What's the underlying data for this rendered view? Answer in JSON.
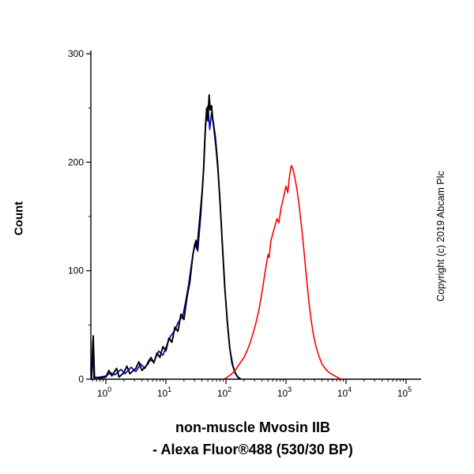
{
  "page": {
    "background": "#ffffff"
  },
  "y_axis_label": "Count",
  "copyright": "Copyright (c) 2019 Abcam Plc",
  "x_title_line1": "non-muscle Mvosin IIB",
  "x_title_line2": "- Alexa Fluor®488 (530/30 BP)",
  "chart_data": {
    "type": "line",
    "title": "",
    "xlabel": "non-muscle Mvosin IIB - Alexa Fluor®488 (530/30 BP)",
    "ylabel": "Count",
    "x_scale": "log10",
    "x_range_log": [
      -0.25,
      5.25
    ],
    "ylim": [
      0,
      300
    ],
    "y_ticks": [
      0,
      100,
      200,
      300
    ],
    "y_minor_ticks": [
      50,
      150,
      250
    ],
    "x_major_exponents": [
      0,
      1,
      2,
      3,
      4,
      5
    ],
    "grid": "off",
    "legend": "none",
    "series": [
      {
        "name": "control-blue",
        "color": "#0000cc",
        "width": 1.6,
        "points": [
          [
            -0.24,
            0
          ],
          [
            -0.22,
            35
          ],
          [
            -0.2,
            1
          ],
          [
            0.0,
            3
          ],
          [
            0.08,
            6
          ],
          [
            0.15,
            4
          ],
          [
            0.25,
            9
          ],
          [
            0.32,
            5
          ],
          [
            0.42,
            11
          ],
          [
            0.5,
            7
          ],
          [
            0.58,
            14
          ],
          [
            0.65,
            10
          ],
          [
            0.72,
            18
          ],
          [
            0.8,
            16
          ],
          [
            0.88,
            26
          ],
          [
            0.95,
            22
          ],
          [
            1.02,
            32
          ],
          [
            1.08,
            40
          ],
          [
            1.15,
            45
          ],
          [
            1.2,
            52
          ],
          [
            1.28,
            58
          ],
          [
            1.33,
            72
          ],
          [
            1.38,
            88
          ],
          [
            1.43,
            108
          ],
          [
            1.48,
            125
          ],
          [
            1.53,
            118
          ],
          [
            1.58,
            150
          ],
          [
            1.62,
            185
          ],
          [
            1.65,
            225
          ],
          [
            1.68,
            245
          ],
          [
            1.7,
            252
          ],
          [
            1.73,
            230
          ],
          [
            1.76,
            246
          ],
          [
            1.79,
            235
          ],
          [
            1.83,
            215
          ],
          [
            1.87,
            190
          ],
          [
            1.91,
            155
          ],
          [
            1.95,
            115
          ],
          [
            1.99,
            78
          ],
          [
            2.03,
            48
          ],
          [
            2.07,
            26
          ],
          [
            2.12,
            12
          ],
          [
            2.17,
            4
          ],
          [
            2.22,
            0
          ]
        ]
      },
      {
        "name": "control-black",
        "color": "#000000",
        "width": 1.9,
        "points": [
          [
            -0.24,
            0
          ],
          [
            -0.21,
            40
          ],
          [
            -0.19,
            2
          ],
          [
            -0.1,
            1
          ],
          [
            0.0,
            2
          ],
          [
            0.05,
            8
          ],
          [
            0.1,
            3
          ],
          [
            0.18,
            10
          ],
          [
            0.22,
            2
          ],
          [
            0.3,
            6
          ],
          [
            0.35,
            12
          ],
          [
            0.4,
            5
          ],
          [
            0.5,
            10
          ],
          [
            0.55,
            16
          ],
          [
            0.6,
            8
          ],
          [
            0.7,
            14
          ],
          [
            0.75,
            20
          ],
          [
            0.8,
            15
          ],
          [
            0.85,
            24
          ],
          [
            0.9,
            20
          ],
          [
            0.95,
            30
          ],
          [
            1.0,
            26
          ],
          [
            1.05,
            38
          ],
          [
            1.1,
            34
          ],
          [
            1.15,
            48
          ],
          [
            1.2,
            44
          ],
          [
            1.25,
            60
          ],
          [
            1.3,
            55
          ],
          [
            1.35,
            75
          ],
          [
            1.4,
            90
          ],
          [
            1.45,
            115
          ],
          [
            1.5,
            128
          ],
          [
            1.52,
            120
          ],
          [
            1.55,
            140
          ],
          [
            1.6,
            170
          ],
          [
            1.63,
            195
          ],
          [
            1.66,
            235
          ],
          [
            1.68,
            250
          ],
          [
            1.7,
            238
          ],
          [
            1.72,
            262
          ],
          [
            1.74,
            248
          ],
          [
            1.76,
            252
          ],
          [
            1.78,
            240
          ],
          [
            1.82,
            225
          ],
          [
            1.86,
            200
          ],
          [
            1.9,
            165
          ],
          [
            1.94,
            125
          ],
          [
            1.98,
            85
          ],
          [
            2.02,
            55
          ],
          [
            2.06,
            30
          ],
          [
            2.1,
            15
          ],
          [
            2.15,
            6
          ],
          [
            2.2,
            2
          ],
          [
            2.25,
            0
          ]
        ]
      },
      {
        "name": "anti-myosin-red",
        "color": "#ff0000",
        "width": 1.6,
        "points": [
          [
            1.95,
            0
          ],
          [
            2.0,
            1
          ],
          [
            2.05,
            3
          ],
          [
            2.1,
            5
          ],
          [
            2.15,
            8
          ],
          [
            2.2,
            12
          ],
          [
            2.25,
            16
          ],
          [
            2.3,
            20
          ],
          [
            2.35,
            26
          ],
          [
            2.4,
            33
          ],
          [
            2.45,
            42
          ],
          [
            2.5,
            52
          ],
          [
            2.55,
            64
          ],
          [
            2.6,
            80
          ],
          [
            2.65,
            98
          ],
          [
            2.7,
            115
          ],
          [
            2.72,
            112
          ],
          [
            2.75,
            128
          ],
          [
            2.8,
            138
          ],
          [
            2.85,
            148
          ],
          [
            2.88,
            144
          ],
          [
            2.92,
            158
          ],
          [
            2.96,
            168
          ],
          [
            3.0,
            178
          ],
          [
            3.03,
            172
          ],
          [
            3.06,
            188
          ],
          [
            3.09,
            197
          ],
          [
            3.12,
            193
          ],
          [
            3.15,
            185
          ],
          [
            3.18,
            176
          ],
          [
            3.22,
            160
          ],
          [
            3.26,
            140
          ],
          [
            3.3,
            118
          ],
          [
            3.34,
            95
          ],
          [
            3.38,
            72
          ],
          [
            3.42,
            54
          ],
          [
            3.46,
            40
          ],
          [
            3.5,
            30
          ],
          [
            3.55,
            21
          ],
          [
            3.6,
            14
          ],
          [
            3.65,
            10
          ],
          [
            3.7,
            7
          ],
          [
            3.78,
            4
          ],
          [
            3.85,
            2
          ],
          [
            3.92,
            0
          ]
        ]
      }
    ]
  }
}
